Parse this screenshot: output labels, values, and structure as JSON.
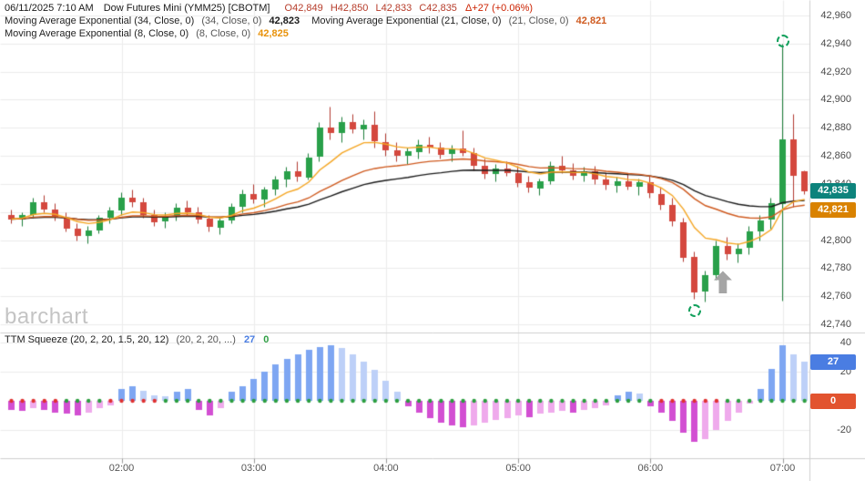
{
  "header": {
    "datetime": "06/11/2025  7:10 AM",
    "symbol": "Dow Futures Mini (YMM25) [CBOTM]",
    "ohlc": [
      {
        "label": "O",
        "value": "42,849"
      },
      {
        "label": "H",
        "value": "42,850"
      },
      {
        "label": "L",
        "value": "42,833"
      },
      {
        "label": "C",
        "value": "42,835"
      }
    ],
    "change_symbol": "Δ",
    "change": "+27 (+0.06%)",
    "studies_line2": [
      {
        "name": "Moving Average Exponential (34, Close, 0)",
        "params": "(34, Close, 0)",
        "value": "42,823",
        "color": "#1a1a1a"
      },
      {
        "name": "Moving Average Exponential (21, Close, 0)",
        "params": "(21, Close, 0)",
        "value": "42,821",
        "color": "#cf5a1f"
      }
    ],
    "studies_line3": [
      {
        "name": "Moving Average Exponential (8, Close, 0)",
        "params": "(8, Close, 0)",
        "value": "42,825",
        "color": "#e8920a"
      }
    ]
  },
  "watermark": "barchart",
  "squeeze_header": {
    "name": "TTM Squeeze (20, 2, 20, 1.5, 20, 12)",
    "params": "(20, 2, 20, ...)",
    "momentum": "27",
    "momentum_color": "#4a7de2",
    "squeeze": "0",
    "squeeze_color": "#2f9e44"
  },
  "price_axis": {
    "ticks": [
      {
        "label": "42,960",
        "value": 42960
      },
      {
        "label": "42,940",
        "value": 42940
      },
      {
        "label": "42,920",
        "value": 42920
      },
      {
        "label": "42,900",
        "value": 42900
      },
      {
        "label": "42,880",
        "value": 42880
      },
      {
        "label": "42,860",
        "value": 42860
      },
      {
        "label": "42,840",
        "value": 42840
      },
      {
        "label": "42,820",
        "value": 42820
      },
      {
        "label": "42,800",
        "value": 42800
      },
      {
        "label": "42,780",
        "value": 42780
      },
      {
        "label": "42,760",
        "value": 42760
      },
      {
        "label": "42,740",
        "value": 42740
      }
    ],
    "badges": [
      {
        "label": "42,835",
        "value": 42835,
        "bg": "#0d837c"
      },
      {
        "label": "42,821",
        "value": 42821,
        "bg": "#d98200"
      }
    ]
  },
  "squeeze_axis": {
    "ticks": [
      {
        "label": "40",
        "value": 40
      },
      {
        "label": "20",
        "value": 20
      },
      {
        "label": "0",
        "value": 0
      },
      {
        "label": "-20",
        "value": -20
      }
    ],
    "badges": [
      {
        "label": "27",
        "value": 27,
        "bg": "#4a7de2"
      },
      {
        "label": "0",
        "value": 0,
        "bg": "#e2532f"
      }
    ]
  },
  "time_axis": {
    "ticks": [
      {
        "label": "02:00",
        "index": 10
      },
      {
        "label": "03:00",
        "index": 22
      },
      {
        "label": "04:00",
        "index": 34
      },
      {
        "label": "05:00",
        "index": 46
      },
      {
        "label": "06:00",
        "index": 58
      },
      {
        "label": "07:00",
        "index": 70
      }
    ]
  },
  "chart_data": {
    "type": "candlestick",
    "symbol": "YMM25",
    "interval": "5min",
    "start_time": "01:10",
    "y_range_main": [
      42740,
      42960
    ],
    "y_range_squeeze": [
      -40,
      45
    ],
    "ema_periods": [
      8,
      21,
      34
    ],
    "candles_ohlc": [
      [
        42818,
        42822,
        42812,
        42815
      ],
      [
        42815,
        42820,
        42810,
        42818
      ],
      [
        42818,
        42830,
        42816,
        42827
      ],
      [
        42827,
        42832,
        42820,
        42822
      ],
      [
        42822,
        42826,
        42814,
        42816
      ],
      [
        42816,
        42820,
        42806,
        42808
      ],
      [
        42808,
        42812,
        42800,
        42803
      ],
      [
        42803,
        42810,
        42798,
        42807
      ],
      [
        42807,
        42818,
        42805,
        42816
      ],
      [
        42816,
        42824,
        42812,
        42821
      ],
      [
        42821,
        42834,
        42818,
        42830
      ],
      [
        42830,
        42836,
        42824,
        42827
      ],
      [
        42827,
        42830,
        42816,
        42818
      ],
      [
        42818,
        42822,
        42810,
        42813
      ],
      [
        42813,
        42820,
        42809,
        42817
      ],
      [
        42817,
        42826,
        42814,
        42823
      ],
      [
        42823,
        42828,
        42818,
        42820
      ],
      [
        42820,
        42824,
        42812,
        42815
      ],
      [
        42815,
        42818,
        42806,
        42809
      ],
      [
        42809,
        42816,
        42804,
        42814
      ],
      [
        42814,
        42826,
        42812,
        42824
      ],
      [
        42824,
        42836,
        42820,
        42833
      ],
      [
        42833,
        42840,
        42826,
        42829
      ],
      [
        42829,
        42838,
        42824,
        42836
      ],
      [
        42836,
        42846,
        42832,
        42843
      ],
      [
        42843,
        42852,
        42838,
        42849
      ],
      [
        42849,
        42856,
        42842,
        42845
      ],
      [
        42845,
        42862,
        42843,
        42859
      ],
      [
        42859,
        42884,
        42856,
        42880
      ],
      [
        42880,
        42895,
        42872,
        42876
      ],
      [
        42876,
        42888,
        42870,
        42884
      ],
      [
        42884,
        42890,
        42876,
        42879
      ],
      [
        42879,
        42886,
        42872,
        42882
      ],
      [
        42882,
        42892,
        42866,
        42870
      ],
      [
        42870,
        42876,
        42860,
        42864
      ],
      [
        42864,
        42870,
        42856,
        42860
      ],
      [
        42860,
        42866,
        42854,
        42863
      ],
      [
        42863,
        42872,
        42858,
        42868
      ],
      [
        42868,
        42874,
        42862,
        42866
      ],
      [
        42866,
        42870,
        42858,
        42861
      ],
      [
        42861,
        42868,
        42856,
        42865
      ],
      [
        42865,
        42878,
        42860,
        42862
      ],
      [
        42862,
        42866,
        42850,
        42853
      ],
      [
        42853,
        42858,
        42844,
        42847
      ],
      [
        42847,
        42854,
        42842,
        42851
      ],
      [
        42851,
        42856,
        42846,
        42848
      ],
      [
        42848,
        42853,
        42838,
        42841
      ],
      [
        42841,
        42846,
        42834,
        42837
      ],
      [
        42837,
        42844,
        42832,
        42842
      ],
      [
        42842,
        42856,
        42840,
        42853
      ],
      [
        42853,
        42860,
        42848,
        42850
      ],
      [
        42850,
        42855,
        42843,
        42846
      ],
      [
        42846,
        42852,
        42842,
        42849
      ],
      [
        42849,
        42853,
        42840,
        42843
      ],
      [
        42843,
        42848,
        42836,
        42839
      ],
      [
        42839,
        42845,
        42834,
        42842
      ],
      [
        42842,
        42847,
        42836,
        42838
      ],
      [
        42838,
        42844,
        42832,
        42841
      ],
      [
        42841,
        42846,
        42830,
        42833
      ],
      [
        42833,
        42838,
        42822,
        42825
      ],
      [
        42825,
        42830,
        42810,
        42813
      ],
      [
        42813,
        42816,
        42785,
        42788
      ],
      [
        42788,
        42792,
        42758,
        42763
      ],
      [
        42763,
        42778,
        42756,
        42775
      ],
      [
        42775,
        42800,
        42772,
        42796
      ],
      [
        42796,
        42802,
        42786,
        42790
      ],
      [
        42790,
        42798,
        42784,
        42794
      ],
      [
        42794,
        42810,
        42790,
        42806
      ],
      [
        42806,
        42818,
        42800,
        42814
      ],
      [
        42814,
        42830,
        42808,
        42826
      ],
      [
        42826,
        42940,
        42757,
        42872
      ],
      [
        42872,
        42890,
        42824,
        42846
      ],
      [
        42849,
        42850,
        42833,
        42835
      ]
    ],
    "squeeze_histogram": [
      -6,
      -7,
      -5,
      -6,
      -8,
      -9,
      -10,
      -8,
      -5,
      -3,
      8,
      10,
      7,
      4,
      3,
      6,
      8,
      -6,
      -10,
      -5,
      6,
      10,
      15,
      20,
      25,
      29,
      32,
      35,
      37,
      38,
      36,
      32,
      27,
      21,
      14,
      6,
      -4,
      -8,
      -12,
      -15,
      -17,
      -18,
      -17,
      -15,
      -13,
      -12,
      -10,
      -11,
      -9,
      -8,
      -7,
      -8,
      -6,
      -5,
      -3,
      4,
      6,
      5,
      -4,
      -8,
      -14,
      -22,
      -28,
      -26,
      -20,
      -14,
      -8,
      -2,
      8,
      22,
      38,
      32,
      27
    ],
    "squeeze_dots": [
      "r",
      "r",
      "r",
      "r",
      "r",
      "g",
      "g",
      "g",
      "g",
      "r",
      "r",
      "r",
      "r",
      "r",
      "g",
      "g",
      "g",
      "g",
      "g",
      "g",
      "g",
      "g",
      "g",
      "g",
      "g",
      "g",
      "g",
      "g",
      "g",
      "g",
      "g",
      "g",
      "g",
      "g",
      "g",
      "g",
      "g",
      "g",
      "g",
      "g",
      "g",
      "g",
      "g",
      "g",
      "g",
      "g",
      "g",
      "g",
      "g",
      "g",
      "g",
      "g",
      "g",
      "g",
      "g",
      "g",
      "g",
      "g",
      "g",
      "r",
      "r",
      "r",
      "r",
      "r",
      "r",
      "g",
      "g",
      "g",
      "g",
      "g",
      "g",
      "g",
      "g"
    ],
    "annotations": [
      {
        "type": "dashed-circle",
        "index": 70,
        "price": 42942
      },
      {
        "type": "dashed-circle",
        "index": 62,
        "price": 42750
      },
      {
        "type": "arrow-up",
        "index": 64,
        "price": 42778
      }
    ],
    "colors": {
      "up": "#29a04a",
      "down": "#d4483e",
      "up_wick": "#1d7e3a",
      "down_wick": "#b23a31",
      "ema8": "#f5a623",
      "ema21": "#cf5a1f",
      "ema34": "#1a1a1a",
      "grid": "#ececec",
      "divider": "#cfcfcf",
      "tick_mark": "#9a9a9a",
      "hist_pos_strong": "#7ea6f2",
      "hist_pos_weak": "#bdd0f8",
      "hist_neg_strong": "#d24fd2",
      "hist_neg_weak": "#efaaec",
      "dot_green": "#2b9e3f",
      "dot_red": "#e03131"
    }
  }
}
